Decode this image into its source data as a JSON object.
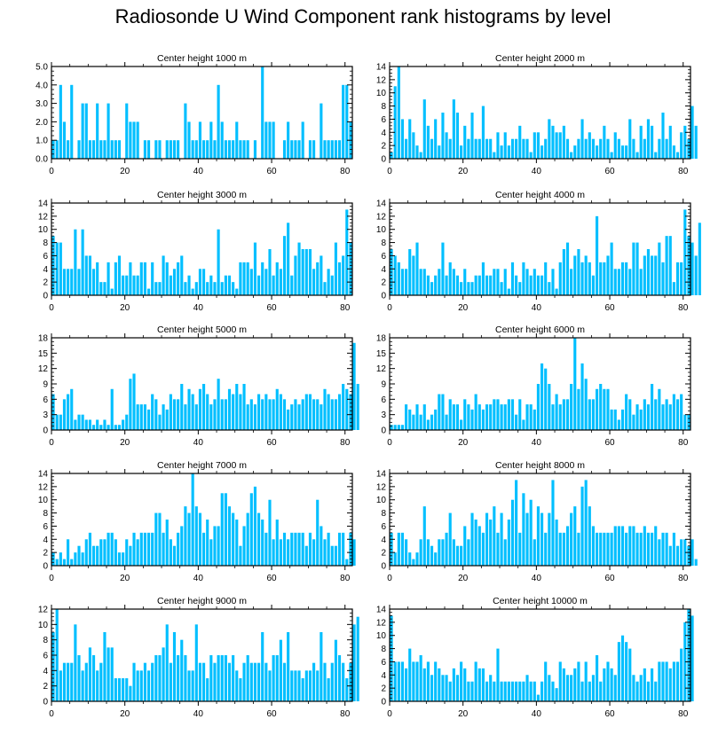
{
  "title": "Radiosonde U Wind Component rank histograms by level",
  "colors": {
    "bar": "#00bfff",
    "axis": "#000000",
    "background": "#ffffff"
  },
  "chart_data": [
    {
      "type": "bar",
      "title": "Center height 1000 m",
      "xlim": [
        0,
        82
      ],
      "ylim": [
        0,
        5
      ],
      "xticks": [
        0,
        20,
        40,
        60,
        80
      ],
      "yticks": [
        0,
        1,
        2,
        3,
        4,
        5
      ],
      "ytick_labels": [
        "0.0",
        "1.0",
        "2.0",
        "3.0",
        "4.0",
        "5.0"
      ],
      "values": [
        1,
        1,
        4,
        2,
        1,
        4,
        0,
        1,
        3,
        3,
        1,
        1,
        3,
        1,
        1,
        3,
        1,
        1,
        1,
        0,
        3,
        2,
        2,
        2,
        0,
        1,
        1,
        0,
        1,
        1,
        0,
        1,
        1,
        1,
        1,
        0,
        3,
        2,
        1,
        1,
        2,
        1,
        1,
        2,
        1,
        4,
        2,
        1,
        1,
        1,
        2,
        1,
        1,
        1,
        0,
        1,
        0,
        5,
        2,
        2,
        2,
        0,
        0,
        1,
        2,
        1,
        1,
        1,
        2,
        0,
        1,
        1,
        0,
        3,
        1,
        1,
        1,
        1,
        1,
        4,
        4,
        2
      ]
    },
    {
      "type": "bar",
      "title": "Center height 2000 m",
      "xlim": [
        0,
        82
      ],
      "ylim": [
        0,
        14
      ],
      "xticks": [
        0,
        20,
        40,
        60,
        80
      ],
      "yticks": [
        0,
        2,
        4,
        6,
        8,
        10,
        12,
        14
      ],
      "ytick_labels": [
        "0",
        "2",
        "4",
        "6",
        "8",
        "10",
        "12",
        "14"
      ],
      "values": [
        1,
        11,
        14,
        6,
        3,
        6,
        4,
        2,
        1,
        9,
        5,
        3,
        6,
        2,
        7,
        4,
        3,
        9,
        7,
        2,
        5,
        3,
        7,
        3,
        3,
        8,
        3,
        3,
        1,
        4,
        2,
        4,
        2,
        3,
        3,
        5,
        3,
        3,
        1,
        4,
        4,
        2,
        3,
        6,
        5,
        4,
        4,
        5,
        3,
        1,
        2,
        3,
        6,
        3,
        4,
        3,
        2,
        3,
        5,
        3,
        1,
        4,
        3,
        2,
        2,
        6,
        3,
        1,
        5,
        3,
        6,
        5,
        1,
        3,
        7,
        3,
        5,
        2,
        1,
        4,
        5,
        3,
        8,
        5
      ]
    },
    {
      "type": "bar",
      "title": "Center height 3000 m",
      "xlim": [
        0,
        82
      ],
      "ylim": [
        0,
        14
      ],
      "xticks": [
        0,
        20,
        40,
        60,
        80
      ],
      "yticks": [
        0,
        2,
        4,
        6,
        8,
        10,
        12,
        14
      ],
      "ytick_labels": [
        "0",
        "2",
        "4",
        "6",
        "8",
        "10",
        "12",
        "14"
      ],
      "values": [
        9,
        8,
        8,
        4,
        4,
        4,
        10,
        4,
        10,
        6,
        6,
        4,
        5,
        2,
        2,
        5,
        1,
        5,
        6,
        3,
        3,
        5,
        3,
        3,
        5,
        5,
        1,
        5,
        2,
        2,
        6,
        5,
        3,
        4,
        5,
        6,
        2,
        3,
        1,
        2,
        4,
        4,
        2,
        3,
        2,
        10,
        2,
        3,
        3,
        2,
        1,
        5,
        5,
        5,
        4,
        8,
        3,
        5,
        4,
        7,
        3,
        5,
        4,
        9,
        11,
        3,
        6,
        8,
        7,
        7,
        7,
        4,
        5,
        6,
        2,
        4,
        3,
        8,
        5,
        6,
        13,
        8
      ]
    },
    {
      "type": "bar",
      "title": "Center height 4000 m",
      "xlim": [
        0,
        82
      ],
      "ylim": [
        0,
        14
      ],
      "xticks": [
        0,
        20,
        40,
        60,
        80
      ],
      "yticks": [
        0,
        2,
        4,
        6,
        8,
        10,
        12,
        14
      ],
      "ytick_labels": [
        "0",
        "2",
        "4",
        "6",
        "8",
        "10",
        "12",
        "14"
      ],
      "values": [
        7,
        6,
        5,
        4,
        4,
        7,
        6,
        8,
        4,
        4,
        3,
        2,
        3,
        4,
        8,
        3,
        5,
        4,
        3,
        2,
        4,
        2,
        2,
        3,
        3,
        5,
        3,
        3,
        4,
        4,
        2,
        4,
        1,
        5,
        3,
        2,
        5,
        4,
        3,
        4,
        3,
        3,
        5,
        2,
        4,
        1,
        5,
        7,
        8,
        4,
        6,
        7,
        5,
        6,
        5,
        3,
        12,
        5,
        5,
        6,
        8,
        4,
        4,
        5,
        5,
        4,
        8,
        8,
        4,
        6,
        7,
        6,
        6,
        8,
        5,
        9,
        9,
        2,
        5,
        5,
        13,
        9,
        8,
        6,
        11
      ]
    },
    {
      "type": "bar",
      "title": "Center height 5000 m",
      "xlim": [
        0,
        82
      ],
      "ylim": [
        0,
        18
      ],
      "xticks": [
        0,
        20,
        40,
        60,
        80
      ],
      "yticks": [
        0,
        3,
        6,
        9,
        12,
        15,
        18
      ],
      "ytick_labels": [
        "0",
        "3",
        "6",
        "9",
        "12",
        "15",
        "18"
      ],
      "values": [
        7,
        3,
        3,
        6,
        7,
        8,
        2,
        3,
        3,
        2,
        2,
        1,
        2,
        1,
        2,
        1,
        8,
        1,
        1,
        2,
        3,
        10,
        11,
        5,
        5,
        5,
        4,
        7,
        6,
        3,
        5,
        4,
        7,
        6,
        6,
        9,
        5,
        8,
        7,
        5,
        8,
        9,
        7,
        5,
        6,
        10,
        6,
        6,
        8,
        7,
        9,
        7,
        9,
        5,
        6,
        5,
        7,
        6,
        7,
        6,
        6,
        8,
        7,
        6,
        4,
        5,
        6,
        5,
        6,
        7,
        7,
        6,
        6,
        5,
        8,
        7,
        6,
        6,
        7,
        9,
        8,
        7,
        17,
        9
      ]
    },
    {
      "type": "bar",
      "title": "Center height 6000 m",
      "xlim": [
        0,
        82
      ],
      "ylim": [
        0,
        18
      ],
      "xticks": [
        0,
        20,
        40,
        60,
        80
      ],
      "yticks": [
        0,
        3,
        6,
        9,
        12,
        15,
        18
      ],
      "ytick_labels": [
        "0",
        "3",
        "6",
        "9",
        "12",
        "15",
        "18"
      ],
      "values": [
        1,
        1,
        1,
        1,
        5,
        4,
        3,
        5,
        3,
        5,
        2,
        3,
        4,
        7,
        7,
        3,
        6,
        5,
        5,
        2,
        6,
        5,
        4,
        7,
        5,
        4,
        5,
        5,
        6,
        6,
        5,
        5,
        6,
        6,
        3,
        6,
        2,
        5,
        5,
        4,
        9,
        13,
        12,
        9,
        5,
        7,
        5,
        6,
        6,
        9,
        18,
        8,
        13,
        10,
        6,
        6,
        8,
        9,
        8,
        8,
        4,
        4,
        2,
        4,
        7,
        6,
        3,
        5,
        4,
        6,
        5,
        9,
        6,
        8,
        5,
        6,
        5,
        7,
        6,
        7,
        3,
        3
      ]
    },
    {
      "type": "bar",
      "title": "Center height 7000 m",
      "xlim": [
        0,
        82
      ],
      "ylim": [
        0,
        14
      ],
      "xticks": [
        0,
        20,
        40,
        60,
        80
      ],
      "yticks": [
        0,
        2,
        4,
        6,
        8,
        10,
        12,
        14
      ],
      "ytick_labels": [
        "0",
        "2",
        "4",
        "6",
        "8",
        "10",
        "12",
        "14"
      ],
      "values": [
        2,
        1,
        2,
        1,
        4,
        1,
        2,
        3,
        2,
        4,
        5,
        3,
        3,
        4,
        4,
        5,
        5,
        4,
        2,
        2,
        4,
        3,
        5,
        4,
        5,
        5,
        5,
        5,
        8,
        8,
        5,
        7,
        4,
        3,
        5,
        6,
        9,
        8,
        14,
        9,
        8,
        5,
        7,
        4,
        6,
        6,
        11,
        11,
        9,
        8,
        7,
        3,
        6,
        8,
        11,
        12,
        8,
        7,
        5,
        10,
        4,
        7,
        4,
        5,
        4,
        5,
        5,
        5,
        5,
        3,
        5,
        4,
        10,
        6,
        4,
        5,
        3,
        3,
        5,
        5,
        1,
        5,
        4
      ]
    },
    {
      "type": "bar",
      "title": "Center height 8000 m",
      "xlim": [
        0,
        82
      ],
      "ylim": [
        0,
        14
      ],
      "xticks": [
        0,
        20,
        40,
        60,
        80
      ],
      "yticks": [
        0,
        2,
        4,
        6,
        8,
        10,
        12,
        14
      ],
      "ytick_labels": [
        "0",
        "2",
        "4",
        "6",
        "8",
        "10",
        "12",
        "14"
      ],
      "values": [
        5,
        2,
        5,
        5,
        4,
        2,
        1,
        2,
        4,
        9,
        4,
        3,
        2,
        4,
        4,
        5,
        8,
        4,
        3,
        3,
        6,
        4,
        8,
        7,
        6,
        5,
        8,
        7,
        9,
        5,
        8,
        4,
        7,
        10,
        13,
        5,
        11,
        8,
        10,
        4,
        9,
        8,
        5,
        8,
        13,
        7,
        5,
        5,
        6,
        8,
        9,
        5,
        12,
        13,
        9,
        6,
        5,
        5,
        5,
        5,
        5,
        6,
        6,
        6,
        5,
        6,
        6,
        5,
        5,
        6,
        5,
        5,
        6,
        4,
        5,
        5,
        3,
        5,
        3,
        4,
        4,
        3,
        4,
        1
      ]
    },
    {
      "type": "bar",
      "title": "Center height 9000 m",
      "xlim": [
        0,
        82
      ],
      "ylim": [
        0,
        12
      ],
      "xticks": [
        0,
        20,
        40,
        60,
        80
      ],
      "yticks": [
        0,
        2,
        4,
        6,
        8,
        10,
        12
      ],
      "ytick_labels": [
        "0",
        "2",
        "4",
        "6",
        "8",
        "10",
        "12"
      ],
      "values": [
        9,
        12,
        4,
        5,
        5,
        5,
        10,
        6,
        4,
        5,
        7,
        6,
        4,
        5,
        9,
        7,
        7,
        3,
        3,
        3,
        3,
        2,
        5,
        4,
        4,
        5,
        4,
        5,
        6,
        6,
        7,
        10,
        5,
        9,
        6,
        8,
        6,
        4,
        4,
        10,
        5,
        5,
        3,
        6,
        5,
        6,
        6,
        6,
        5,
        6,
        4,
        3,
        5,
        6,
        5,
        5,
        5,
        9,
        5,
        4,
        6,
        6,
        8,
        5,
        9,
        4,
        4,
        4,
        3,
        4,
        4,
        5,
        4,
        9,
        5,
        3,
        5,
        8,
        6,
        5,
        3,
        5,
        10,
        11
      ]
    },
    {
      "type": "bar",
      "title": "Center height 10000 m",
      "xlim": [
        0,
        82
      ],
      "ylim": [
        0,
        14
      ],
      "xticks": [
        0,
        20,
        40,
        60,
        80
      ],
      "yticks": [
        0,
        2,
        4,
        6,
        8,
        10,
        12,
        14
      ],
      "ytick_labels": [
        "0",
        "2",
        "4",
        "6",
        "8",
        "10",
        "12",
        "14"
      ],
      "values": [
        13,
        6,
        6,
        6,
        5,
        8,
        6,
        6,
        7,
        5,
        6,
        4,
        6,
        5,
        4,
        4,
        3,
        5,
        4,
        6,
        5,
        3,
        3,
        6,
        5,
        5,
        3,
        4,
        3,
        8,
        3,
        3,
        3,
        3,
        3,
        3,
        3,
        4,
        3,
        3,
        1,
        3,
        6,
        4,
        3,
        2,
        6,
        5,
        4,
        4,
        5,
        6,
        3,
        6,
        3,
        4,
        7,
        3,
        5,
        6,
        5,
        4,
        9,
        10,
        9,
        8,
        4,
        3,
        4,
        5,
        3,
        5,
        3,
        6,
        6,
        6,
        5,
        6,
        6,
        8,
        12,
        14,
        13
      ]
    }
  ]
}
